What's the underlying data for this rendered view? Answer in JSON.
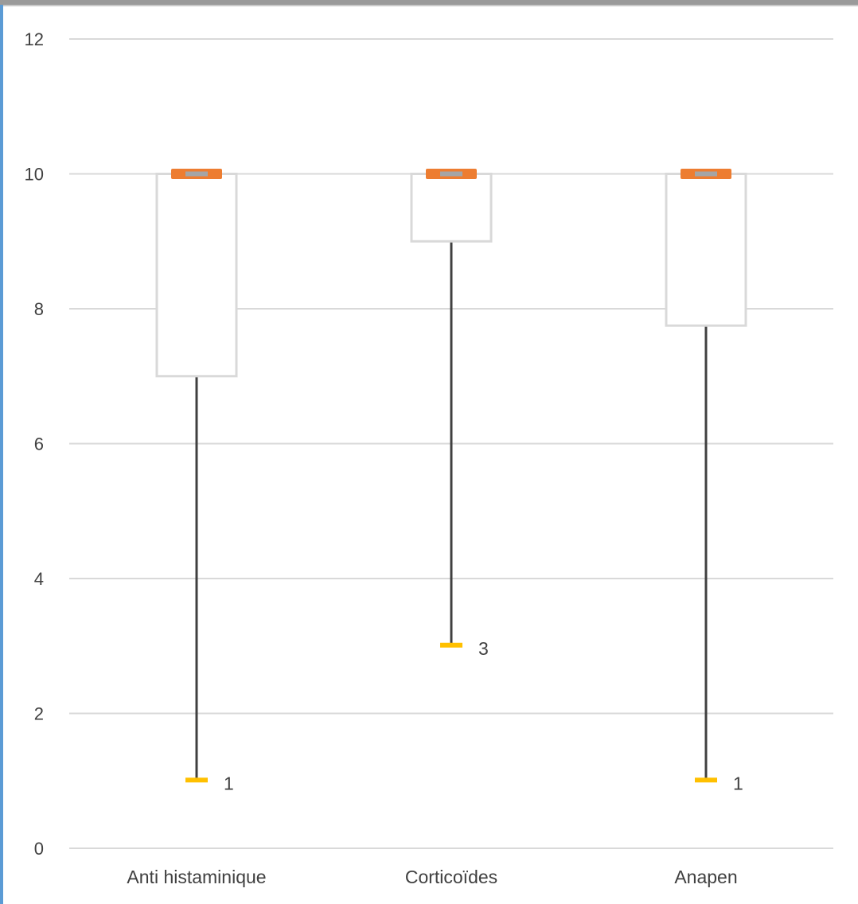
{
  "chart_data": {
    "type": "boxplot",
    "title": "",
    "xlabel": "",
    "ylabel": "",
    "ylim": [
      0,
      12
    ],
    "y_ticks": [
      0,
      2,
      4,
      6,
      8,
      10,
      12
    ],
    "grid": true,
    "categories": [
      "Anti histaminique",
      "Corticoïdes",
      "Anapen"
    ],
    "boxes": [
      {
        "category": "Anti histaminique",
        "min": 1,
        "q1": 7,
        "median": 10,
        "q3": 10,
        "max": 10,
        "min_label": "1"
      },
      {
        "category": "Corticoïdes",
        "min": 3,
        "q1": 9,
        "median": 10,
        "q3": 10,
        "max": 10,
        "min_label": "3"
      },
      {
        "category": "Anapen",
        "min": 1,
        "q1": 7.75,
        "median": 10,
        "q3": 10,
        "max": 10,
        "min_label": "1"
      }
    ],
    "colors": {
      "box_border": "#d9d9d9",
      "whisker": "#404040",
      "max_marker": "#ed7d31",
      "median_marker": "#a5a5a5",
      "min_marker": "#ffc000",
      "grid": "#d9d9d9",
      "frame_accent": "#5b9bd5"
    }
  }
}
